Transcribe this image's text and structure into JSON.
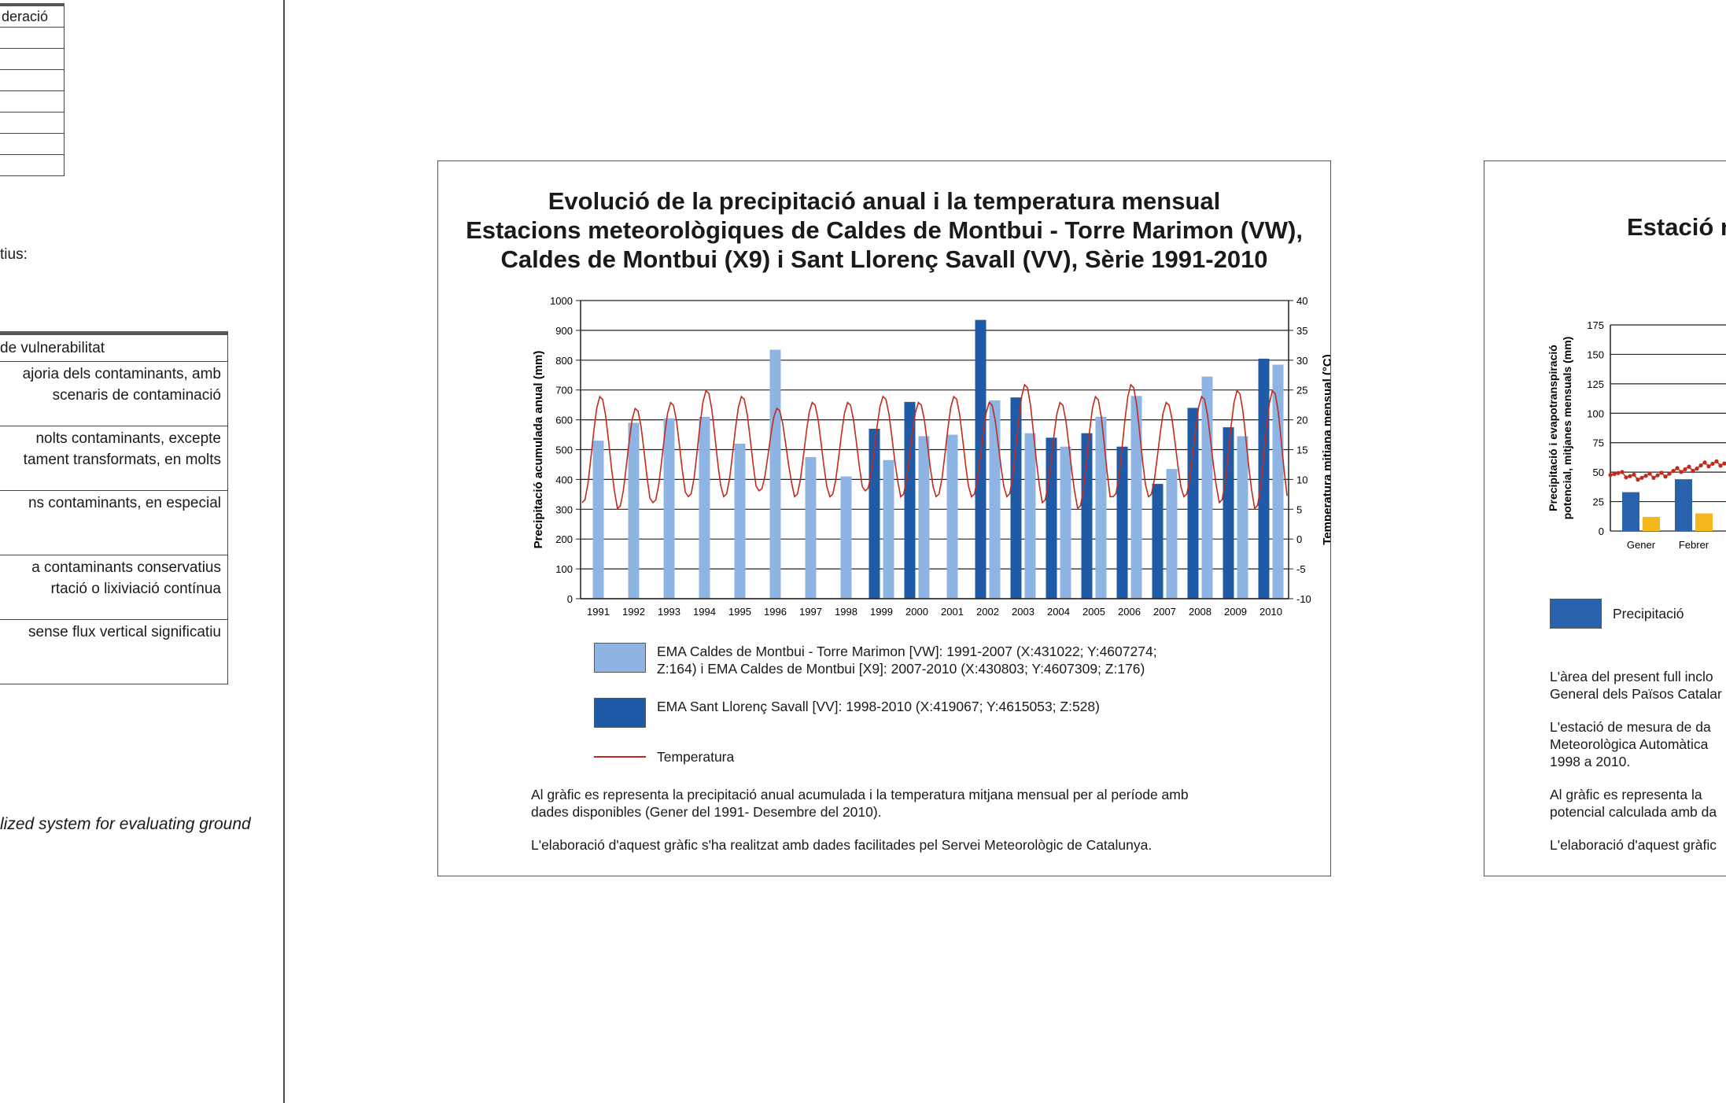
{
  "left_page": {
    "table1_header": "deració",
    "text_tius": "tius:",
    "table2_header": "de vulnerabilitat",
    "table2_rows": [
      [
        "ajoria dels contaminants, amb",
        "scenaris de contaminació"
      ],
      [
        "nolts contaminants, excepte",
        "tament transformats, en molts"
      ],
      [
        "ns contaminants, en especial"
      ],
      [
        "a contaminants conservatius",
        "rtació o lixiviació contínua"
      ],
      [
        "sense flux vertical significatiu"
      ]
    ],
    "italic_text": "lized system for evaluating ground"
  },
  "center_panel": {
    "title_lines": [
      "Evolució de la precipitació anual i la temperatura mensual",
      "Estacions meteorològiques de Caldes de Montbui - Torre Marimon (VW),",
      "Caldes de Montbui (X9) i Sant Llorenç Savall (VV), Sèrie 1991-2010"
    ],
    "legend": {
      "light": "EMA Caldes de Montbui - Torre Marimon [VW]: 1991-2007 (X:431022; Y:4607274;",
      "light2": "Z:164) i EMA Caldes de Montbui [X9]: 2007-2010 (X:430803; Y:4607309; Z:176)",
      "dark": "EMA Sant Llorenç Savall [VV]: 1998-2010 (X:419067; Y:4615053; Z:528)",
      "line": "Temperatura"
    },
    "note1": "Al gràfic es representa la precipitació anual acumulada i la temperatura mitjana mensual per al període amb",
    "note1b": "dades disponibles (Gener del 1991- Desembre del 2010).",
    "note2": "L'elaboració d'aquest gràfic s'ha realitzat amb dades facilitades pel Servei Meteorològic de Catalunya."
  },
  "right_panel": {
    "title": "Estació r",
    "ylabel_lines": [
      "Precipitació i evapotranspiració",
      "potencial, mitjanes mensuals (mm)"
    ],
    "y_ticks": [
      "0",
      "25",
      "50",
      "75",
      "100",
      "125",
      "150",
      "175"
    ],
    "x_ticks": [
      "Gener",
      "Febrer"
    ],
    "legend_precip": "Precipitació",
    "text_lines": [
      "L'àrea del present full inclo",
      "General dels Països Catalar",
      "L'estació de mesura de da",
      "Meteorològica Automàtica",
      "1998 a 2010.",
      "Al gràfic es representa la",
      "potencial calculada amb da",
      "L'elaboració d'aquest gràfic"
    ],
    "colors": {
      "precip": "#2a63ad",
      "etp": "#f5b81c",
      "temp": "#c42a1c"
    }
  },
  "chart_data": {
    "type": "bar",
    "title": "Evolució de la precipitació anual i la temperatura mensual",
    "xlabel": "",
    "ylabel": "Precipitació acumulada anual (mm)",
    "y2label": "Temperatura mitjana mensual (°C)",
    "ylim": [
      0,
      1000
    ],
    "y2lim": [
      -10,
      40
    ],
    "y_ticks": [
      "0",
      "100",
      "200",
      "300",
      "400",
      "500",
      "600",
      "700",
      "800",
      "900",
      "1000"
    ],
    "y2_ticks": [
      "-10",
      "-5",
      "0",
      "5",
      "10",
      "15",
      "20",
      "25",
      "30",
      "35",
      "40"
    ],
    "categories": [
      "1991",
      "1992",
      "1993",
      "1994",
      "1995",
      "1996",
      "1997",
      "1998",
      "1999",
      "2000",
      "2001",
      "2002",
      "2003",
      "2004",
      "2005",
      "2006",
      "2007",
      "2008",
      "2009",
      "2010"
    ],
    "grid": true,
    "series": [
      {
        "name": "EMA Caldes de Montbui - Torre Marimon [VW] / EMA Caldes de Montbui [X9]",
        "color": "#8db4e2",
        "values": [
          530,
          590,
          605,
          610,
          520,
          835,
          475,
          410,
          465,
          545,
          550,
          665,
          555,
          510,
          610,
          680,
          435,
          745,
          545,
          785
        ]
      },
      {
        "name": "EMA Sant Llorenç Savall [VV]",
        "color": "#1f5aa6",
        "values": [
          null,
          null,
          null,
          null,
          null,
          null,
          null,
          null,
          570,
          660,
          null,
          935,
          675,
          540,
          555,
          510,
          385,
          640,
          575,
          805
        ]
      },
      {
        "name": "Temperatura",
        "type": "line",
        "color": "#c42a1c",
        "annual_min": [
          6,
          5,
          6,
          7,
          7,
          8,
          7,
          7,
          8,
          7,
          7,
          7,
          7,
          6,
          5,
          7,
          7,
          7,
          6,
          5
        ],
        "annual_max": [
          24,
          22,
          23,
          25,
          24,
          22,
          23,
          23,
          24,
          23,
          24,
          23,
          26,
          23,
          24,
          26,
          23,
          24,
          25,
          25
        ]
      }
    ]
  }
}
